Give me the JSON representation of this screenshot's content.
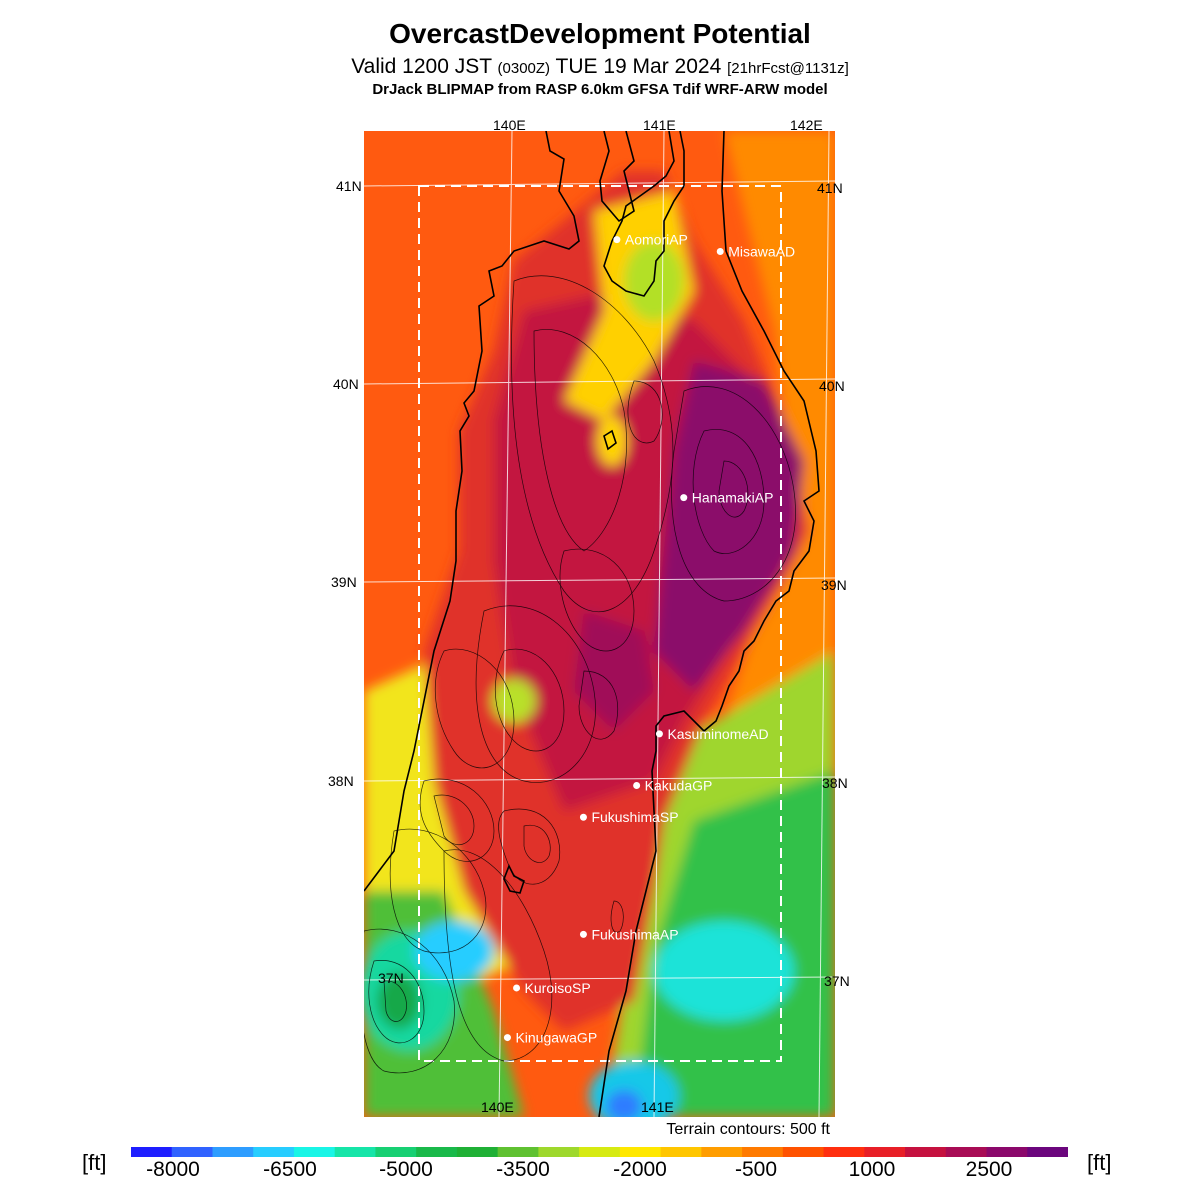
{
  "header": {
    "title": "OvercastDevelopment Potential",
    "valid_main": "Valid 1200 JST",
    "valid_zulu": "(0300Z)",
    "valid_date": "TUE 19 Mar 2024",
    "valid_fcst": "[21hrFcst@1131z]",
    "model": "DrJack BLIPMAP from RASP 6.0km GFSA Tdif WRF-ARW model"
  },
  "map": {
    "lon_labels_top": [
      "140E",
      "141E",
      "142E"
    ],
    "lon_labels_bottom": [
      "140E",
      "141E"
    ],
    "lat_labels_left": [
      "41N",
      "40N",
      "39N",
      "38N",
      "37N"
    ],
    "lat_labels_right": [
      "41N",
      "40N",
      "39N",
      "38N",
      "37N"
    ],
    "stations": [
      {
        "name": "AomoriAP",
        "lon": 140.69,
        "lat": 40.73
      },
      {
        "name": "MisawaAD",
        "lon": 141.37,
        "lat": 40.67
      },
      {
        "name": "HanamakiAP",
        "lon": 141.13,
        "lat": 39.43
      },
      {
        "name": "KasuminomeAD",
        "lon": 140.97,
        "lat": 38.24
      },
      {
        "name": "KakudaGP",
        "lon": 140.82,
        "lat": 37.98
      },
      {
        "name": "FukushimaSP",
        "lon": 140.47,
        "lat": 37.82
      },
      {
        "name": "FukushimaAP",
        "lon": 140.47,
        "lat": 37.23
      },
      {
        "name": "KuroisoSP",
        "lon": 140.03,
        "lat": 36.96
      },
      {
        "name": "KinugawaGP",
        "lon": 139.97,
        "lat": 36.71
      }
    ],
    "terrain_note": "Terrain contours: 500 ft",
    "colors": {
      "land": "#d8252a",
      "interior": "#c5144f",
      "highland": "#7d0a73"
    }
  },
  "colorbar": {
    "unit": "[ft]",
    "ticks": [
      "-8000",
      "-6500",
      "-5000",
      "-3500",
      "-2000",
      "-500",
      "1000",
      "2500"
    ],
    "colors": [
      "#1e1eff",
      "#3062ff",
      "#2e9dff",
      "#27cdff",
      "#19f5e6",
      "#16e5a8",
      "#17d073",
      "#19b94a",
      "#1fb035",
      "#5fc131",
      "#9ed82c",
      "#d6ea12",
      "#ffe800",
      "#ffc600",
      "#ff9d00",
      "#ff7a00",
      "#ff5200",
      "#ff2f0f",
      "#e81f27",
      "#c5113f",
      "#a80c55",
      "#8b086b",
      "#6b067d"
    ]
  }
}
